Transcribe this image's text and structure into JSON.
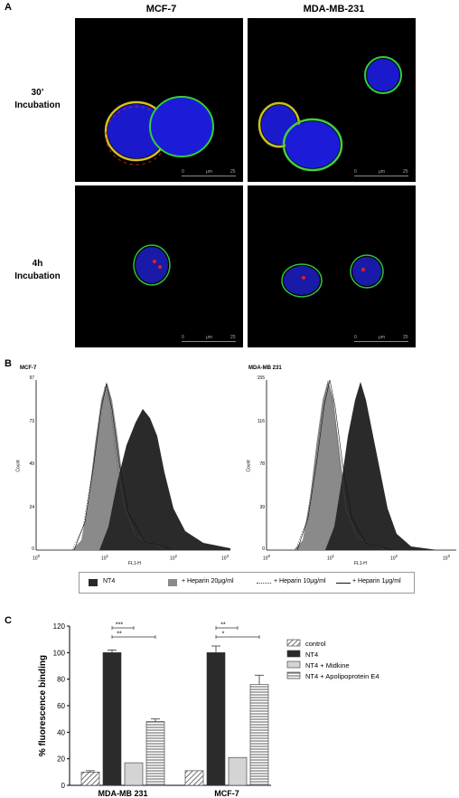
{
  "panel_a": {
    "letter": "A",
    "columns": [
      "MCF-7",
      "MDA-MB-231"
    ],
    "rows": [
      {
        "line1": "30’",
        "line2": "Incubation"
      },
      {
        "line1": "4h",
        "line2": "Incubation"
      }
    ],
    "scalebar": {
      "start": "0",
      "unit": "μm",
      "end": "25"
    }
  },
  "panel_b": {
    "letter": "B",
    "charts": [
      {
        "title": "MCF-7",
        "y_ticks": [
          "97",
          "73",
          "49",
          "24",
          "0"
        ],
        "ylabel": "Count",
        "xlabel": "FL1-H",
        "x_ticks": [
          "10",
          "10",
          "10",
          "10"
        ],
        "x_exp": [
          "0",
          "1",
          "2",
          "3"
        ]
      },
      {
        "title": "MDA-MB 231",
        "y_ticks": [
          "155",
          "116",
          "78",
          "39",
          "0"
        ],
        "ylabel": "Count",
        "xlabel": "FL1-H",
        "x_ticks": [
          "10",
          "10",
          "10",
          "10"
        ],
        "x_exp": [
          "0",
          "1",
          "2",
          "3"
        ]
      }
    ],
    "legend": [
      "NT4",
      "+ Heparin 20μg/ml",
      "+ Heparin 10μg/ml",
      "+ Heparin 1μg/ml"
    ]
  },
  "panel_c": {
    "letter": "C"
  },
  "chart_data": {
    "type": "bar",
    "ylabel": "% fluorescence binding",
    "ylim": [
      0,
      120
    ],
    "yticks": [
      "0",
      "20",
      "40",
      "60",
      "80",
      "100",
      "120"
    ],
    "categories": [
      "MDA-MB 231",
      "MCF-7"
    ],
    "series": [
      {
        "name": "control",
        "values": [
          10,
          11
        ],
        "errors": [
          1,
          0
        ]
      },
      {
        "name": "NT4",
        "values": [
          100,
          100
        ],
        "errors": [
          2,
          5
        ]
      },
      {
        "name": "NT4 + Midkine",
        "values": [
          17,
          21
        ],
        "errors": [
          0,
          0
        ]
      },
      {
        "name": "NT4 + Apolipoprotein E4",
        "values": [
          48,
          76
        ],
        "errors": [
          2,
          7
        ]
      }
    ],
    "significance": [
      {
        "group": 0,
        "from": 1,
        "to": 2,
        "label": "***"
      },
      {
        "group": 0,
        "from": 1,
        "to": 3,
        "label": "**"
      },
      {
        "group": 1,
        "from": 1,
        "to": 2,
        "label": "**"
      },
      {
        "group": 1,
        "from": 1,
        "to": 3,
        "label": "*"
      }
    ],
    "legend_position": "right"
  }
}
